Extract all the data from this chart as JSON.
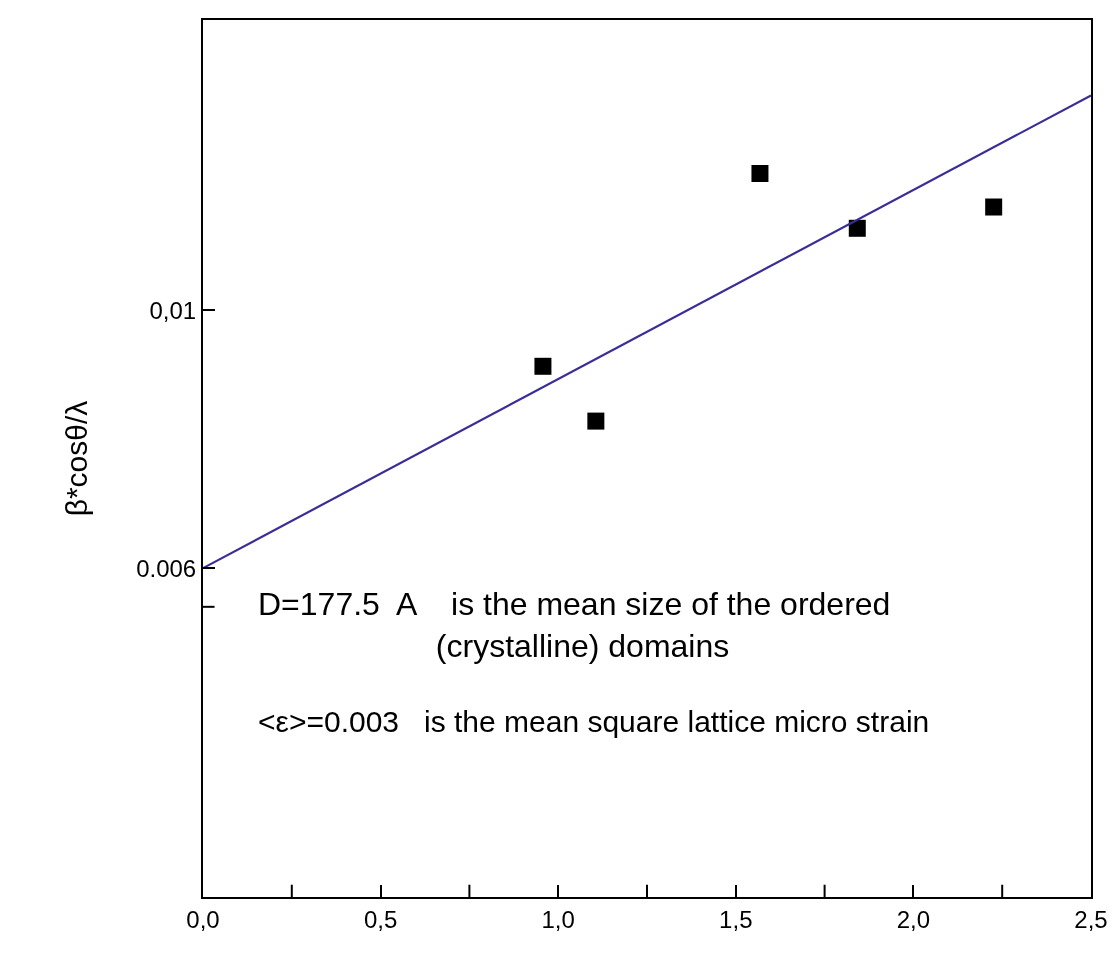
{
  "chart_data": {
    "type": "scatter",
    "ylabel": "β*cosθ/λ",
    "series": [
      {
        "marker": "square",
        "color": "#000000",
        "x": [
          0.957,
          1.106,
          1.568,
          1.842,
          2.226
        ],
        "values": [
          0.00913,
          0.00828,
          0.01212,
          0.01127,
          0.0116
        ]
      },
      {
        "type": "line",
        "marker": "none",
        "line_style": "solid",
        "color": "#3a2e96",
        "x": [
          0,
          2.5
        ],
        "values": [
          0.006,
          0.01333
        ]
      }
    ],
    "xlim": [
      0,
      2.5
    ],
    "xticks": [
      {
        "value": 0,
        "label": "0,0"
      },
      {
        "value": 0.25,
        "label": null
      },
      {
        "value": 0.5,
        "label": "0,5"
      },
      {
        "value": 0.75,
        "label": null
      },
      {
        "value": 1.0,
        "label": "1,0"
      },
      {
        "value": 1.25,
        "label": null
      },
      {
        "value": 1.5,
        "label": "1,5"
      },
      {
        "value": 1.75,
        "label": null
      },
      {
        "value": 2.0,
        "label": "2,0"
      },
      {
        "value": 2.25,
        "label": null
      },
      {
        "value": 2.5,
        "label": "2,5"
      }
    ],
    "ylim": [
      0.0009,
      0.0145
    ],
    "yticks": [
      {
        "value": 0.0054,
        "label": null
      },
      {
        "value": 0.006,
        "label": "0.006"
      },
      {
        "value": 0.01,
        "label": "0,01"
      }
    ],
    "annotations": [
      "D=177.5  A    is the mean size of the ordered\n                    (crystalline) domains",
      "<ε>=0.003   is the mean square lattice micro strain"
    ]
  }
}
